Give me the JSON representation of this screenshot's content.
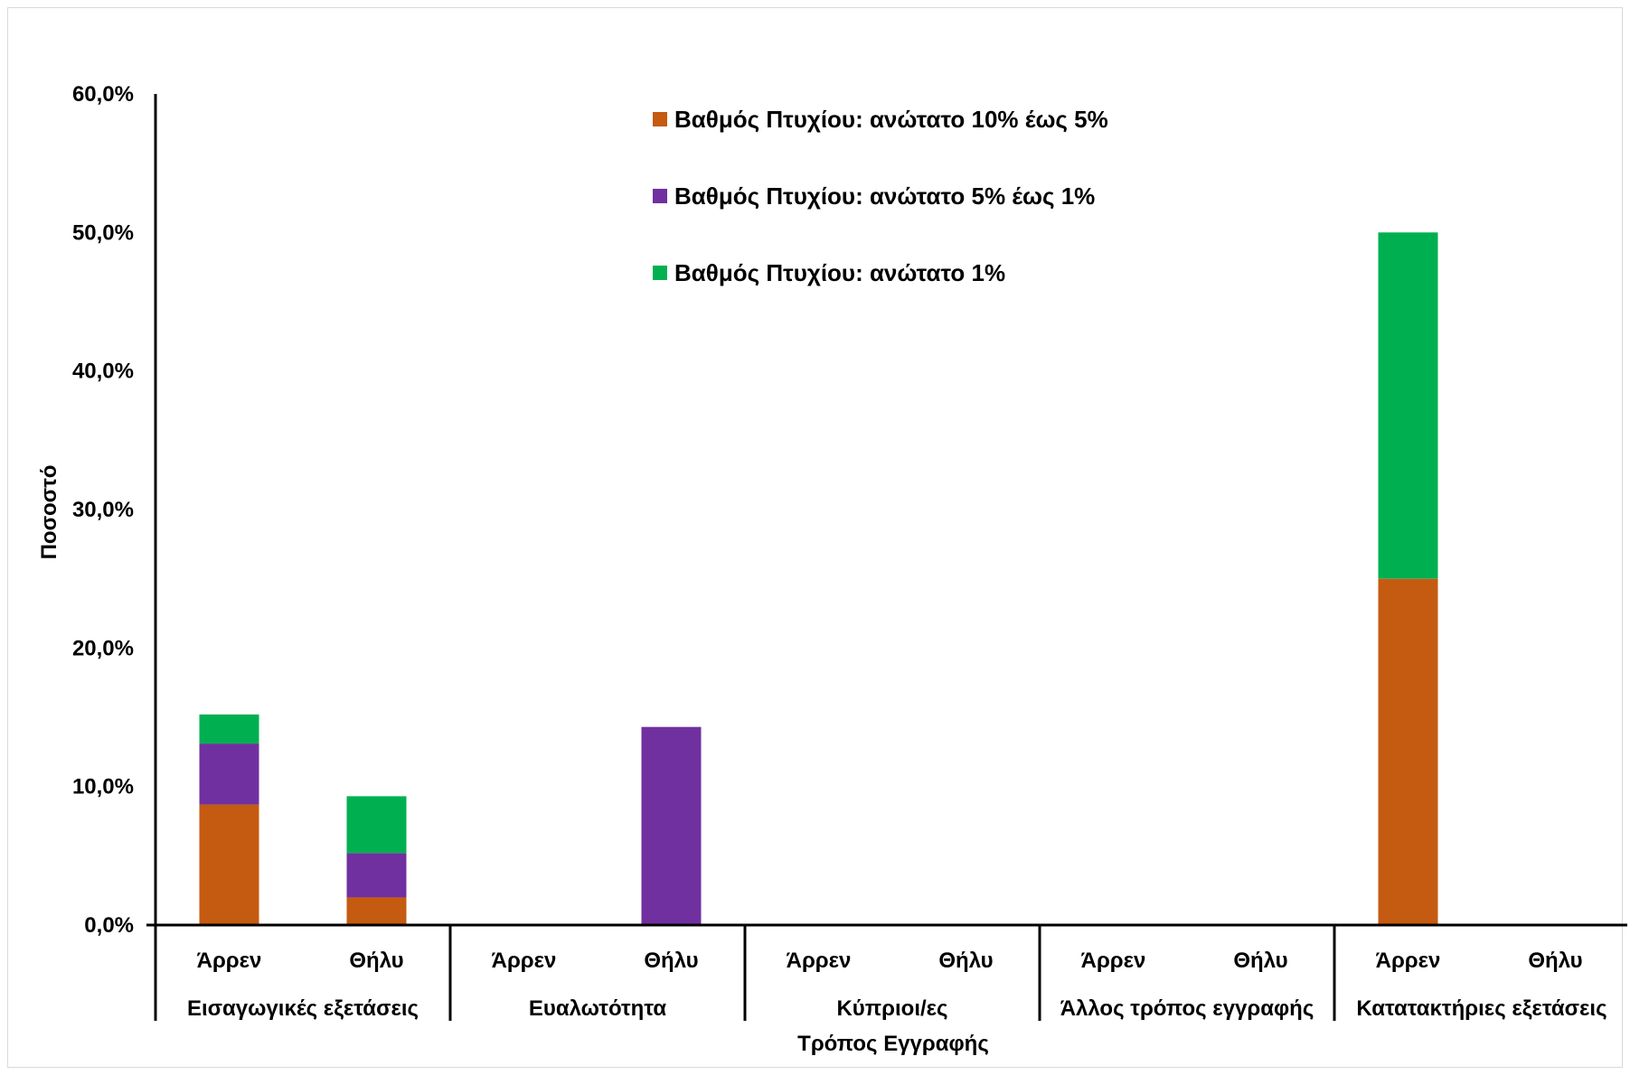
{
  "chart_data": {
    "type": "bar",
    "stacked": true,
    "ylabel": "Ποσοστό",
    "xlabel": "Τρόπος Εγγραφής",
    "ylim": [
      0,
      60
    ],
    "y_ticks": [
      "0,0%",
      "10,0%",
      "20,0%",
      "30,0%",
      "40,0%",
      "50,0%",
      "60,0%"
    ],
    "groups": [
      {
        "label": "Εισαγωγικές εξετάσεις",
        "categories": [
          "Άρρεν",
          "Θήλυ"
        ]
      },
      {
        "label": "Ευαλωτότητα",
        "categories": [
          "Άρρεν",
          "Θήλυ"
        ]
      },
      {
        "label": "Κύπριοι/ες",
        "categories": [
          "Άρρεν",
          "Θήλυ"
        ]
      },
      {
        "label": "Άλλος τρόπος εγγραφής",
        "categories": [
          "Άρρεν",
          "Θήλυ"
        ]
      },
      {
        "label": "Κατατακτήριες εξετάσεις",
        "categories": [
          "Άρρεν",
          "Θήλυ"
        ]
      }
    ],
    "series": [
      {
        "name": "Βαθμός Πτυχίου: ανώτατο 10% έως 5%",
        "color": "#C55A11",
        "values": [
          8.7,
          2.0,
          0,
          0,
          0,
          0,
          0,
          0,
          25.0,
          0
        ]
      },
      {
        "name": "Βαθμός Πτυχίου: ανώτατο 5% έως 1%",
        "color": "#7030A0",
        "values": [
          4.4,
          3.2,
          0,
          14.3,
          0,
          0,
          0,
          0,
          0,
          0
        ]
      },
      {
        "name": "Βαθμός Πτυχίου: ανώτατο 1%",
        "color": "#00B050",
        "values": [
          2.1,
          4.1,
          0,
          0,
          0,
          0,
          0,
          0,
          25.0,
          0
        ]
      }
    ],
    "legend_position": "top-center",
    "grid": false
  }
}
